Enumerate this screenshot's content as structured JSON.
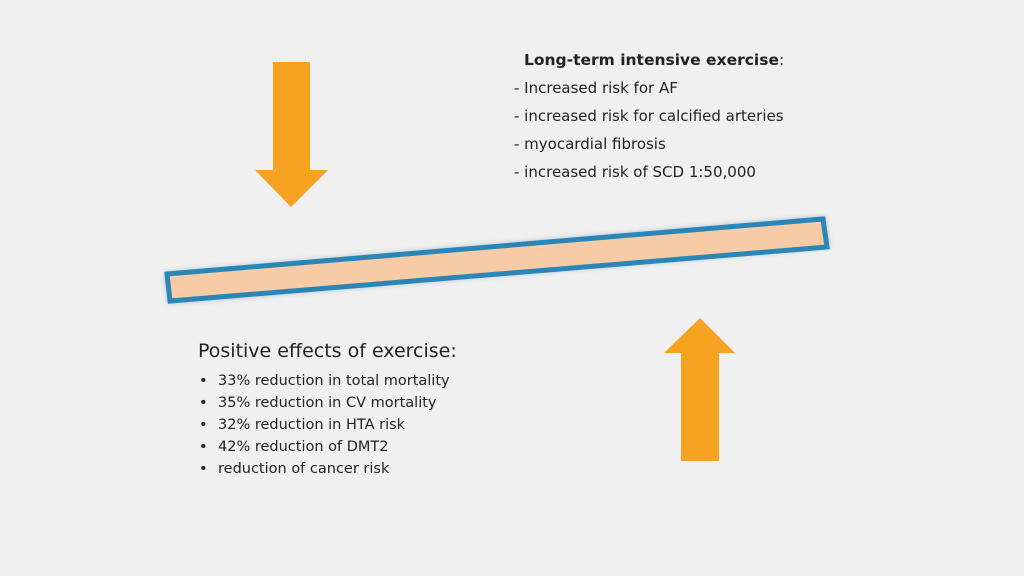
{
  "colors": {
    "arrow": "#f5a320",
    "beam_fill": "#f7cba6",
    "beam_border": "#2b86b8",
    "background": "#f0f0f0"
  },
  "top_block": {
    "title": "Long-term intensive exercise",
    "title_suffix": ":",
    "items": [
      "- Increased risk for AF",
      "- increased risk for calcified  arteries",
      "- myocardial fibrosis",
      "- increased risk of SCD 1:50,000"
    ]
  },
  "bottom_block": {
    "title": "Positive effects of exercise:",
    "bullet": "•",
    "items": [
      "33% reduction in total mortality",
      "35% reduction in CV mortality",
      "32% reduction in HTA risk",
      "42% reduction of DMT2",
      "reduction of cancer risk"
    ]
  },
  "icons": {
    "down_arrow": "arrow-down-icon",
    "up_arrow": "arrow-up-icon"
  }
}
